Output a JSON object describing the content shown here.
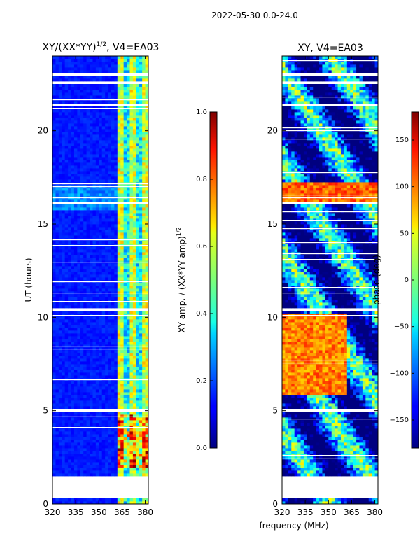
{
  "chart_data": {
    "type": "heatmap",
    "suptitle": "2022-05-30 0.0-24.0",
    "xlabel": "frequency (MHz)",
    "panels": [
      {
        "id": "amp",
        "title_main": "XY/(XX*YY)",
        "title_sup": "1/2",
        "title_tail": ", V4=EA03",
        "ylabel": "UT (hours)",
        "xlim": [
          320,
          382
        ],
        "ylim": [
          0,
          24
        ],
        "xticks": [
          320,
          335,
          350,
          365,
          380
        ],
        "yticks": [
          0,
          5,
          10,
          15,
          20
        ],
        "colorbar": {
          "label_main": "XY amp. / (XX*YY amp)",
          "label_sup": "1/2",
          "range": [
            0.0,
            1.0
          ],
          "ticks": [
            0.0,
            0.2,
            0.4,
            0.6,
            0.8,
            1.0
          ],
          "tick_labels": [
            "0.0",
            "0.2",
            "0.4",
            "0.6",
            "0.8",
            "1.0"
          ]
        }
      },
      {
        "id": "phase",
        "title_main": "XY, V4=EA03",
        "ylabel": "",
        "xlim": [
          320,
          382
        ],
        "ylim": [
          0,
          24
        ],
        "xticks": [
          320,
          335,
          350,
          365,
          380
        ],
        "yticks": [
          0,
          5,
          10,
          15,
          20
        ],
        "colorbar": {
          "label_main": "phase (deg)",
          "range": [
            -180,
            180
          ],
          "ticks": [
            -150,
            -100,
            -50,
            0,
            50,
            100,
            150
          ],
          "tick_labels": [
            "−150",
            "−100",
            "−50",
            "0",
            "50",
            "100",
            "150"
          ]
        }
      }
    ],
    "colormap": "jet",
    "data_gaps_ut_hours": [
      [
        0.3,
        0.45
      ],
      [
        0.5,
        1.55
      ],
      [
        22.95,
        23.05
      ],
      [
        23.35,
        23.45
      ],
      [
        22.55,
        22.62
      ],
      [
        21.3,
        21.4
      ],
      [
        21.1,
        21.15
      ],
      [
        17.05,
        17.15
      ],
      [
        16.1,
        16.15
      ],
      [
        15.55,
        15.65
      ],
      [
        12.4,
        12.45
      ],
      [
        10.35,
        10.45
      ],
      [
        5.35,
        5.45
      ],
      [
        4.95,
        5.05
      ],
      [
        2.05,
        2.1
      ]
    ]
  }
}
